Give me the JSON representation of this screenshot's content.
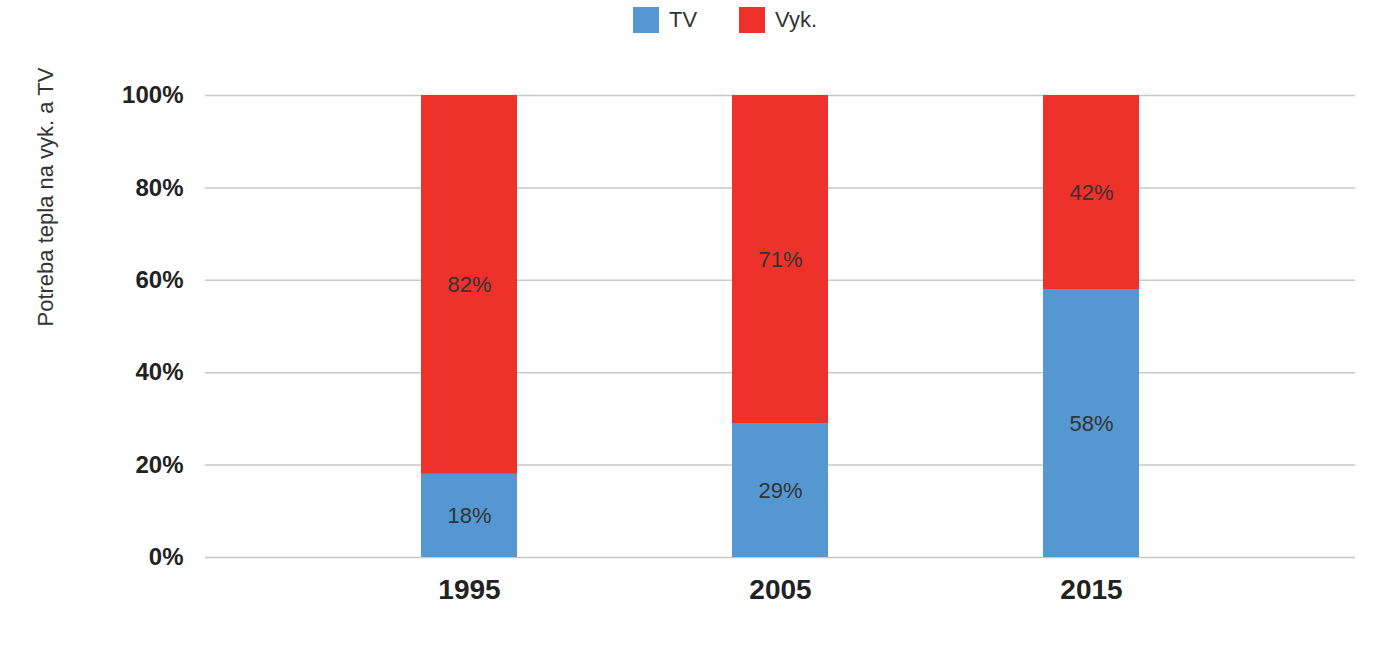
{
  "chart_data": {
    "type": "bar",
    "stacked": true,
    "data_labels": true,
    "grid": true,
    "legend": "top",
    "ylabel": "Potreba tepla na vyk. a TV",
    "categories": [
      "1995",
      "2005",
      "2015"
    ],
    "series": [
      {
        "name": "TV",
        "color": "#5597d1",
        "values": [
          18,
          29,
          58
        ],
        "value_labels": [
          "18%",
          "29%",
          "58%"
        ]
      },
      {
        "name": "Vyk.",
        "color": "#ee312b",
        "values": [
          82,
          71,
          42
        ],
        "value_labels": [
          "82%",
          "71%",
          "42%"
        ]
      }
    ],
    "ylim": [
      0,
      100
    ],
    "yticks": [
      {
        "value": 0,
        "label": "0%"
      },
      {
        "value": 20,
        "label": "20%"
      },
      {
        "value": 40,
        "label": "40%"
      },
      {
        "value": 60,
        "label": "60%"
      },
      {
        "value": 80,
        "label": "80%"
      },
      {
        "value": 100,
        "label": "100%"
      }
    ]
  }
}
